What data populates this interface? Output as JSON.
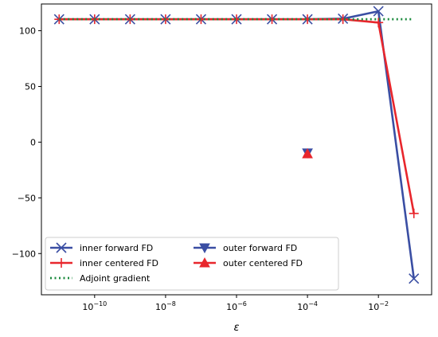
{
  "chart_data": {
    "type": "line",
    "xlabel": "ε",
    "ylabel": "",
    "title": "",
    "xscale": "log",
    "xlim": [
      3.162e-12,
      0.3162
    ],
    "ylim": [
      -137,
      124
    ],
    "grid": false,
    "legend_position": "lower-left",
    "x_tick_labels": [
      {
        "value": 1e-10,
        "base": "10",
        "exp": "−10"
      },
      {
        "value": 1e-08,
        "base": "10",
        "exp": "−8"
      },
      {
        "value": 1e-06,
        "base": "10",
        "exp": "−6"
      },
      {
        "value": 0.0001,
        "base": "10",
        "exp": "−4"
      },
      {
        "value": 0.01,
        "base": "10",
        "exp": "−2"
      }
    ],
    "y_ticks": [
      100,
      50,
      0,
      -50,
      -100
    ],
    "y_tick_labels": [
      "100",
      "50",
      "0",
      "−50",
      "−100"
    ],
    "series": [
      {
        "name": "inner forward FD",
        "color": "#3a4ea3",
        "line": "solid",
        "marker": "x",
        "x": [
          1e-11,
          1e-10,
          1e-09,
          1e-08,
          1e-07,
          1e-06,
          1e-05,
          0.0001,
          0.001,
          0.01,
          0.1
        ],
        "y": [
          110.3,
          110.3,
          110.3,
          110.3,
          110.3,
          110.3,
          110.3,
          110.3,
          110.8,
          117.5,
          -122.5
        ]
      },
      {
        "name": "inner centered FD",
        "color": "#e8262c",
        "line": "solid",
        "marker": "+",
        "x": [
          1e-11,
          1e-10,
          1e-09,
          1e-08,
          1e-07,
          1e-06,
          1e-05,
          0.0001,
          0.001,
          0.01,
          0.1
        ],
        "y": [
          110.3,
          110.3,
          110.3,
          110.3,
          110.3,
          110.3,
          110.3,
          110.3,
          110.3,
          107.3,
          -64
        ]
      },
      {
        "name": "Adjoint gradient",
        "color": "#1a8a3c",
        "line": "dotted",
        "marker": "none",
        "x": [
          1e-11,
          0.1
        ],
        "y": [
          110.3,
          110.3
        ]
      },
      {
        "name": "outer forward FD",
        "color": "#3a4ea3",
        "line": "solid",
        "marker": "triangle-down",
        "x": [
          0.0001
        ],
        "y": [
          -9.6
        ]
      },
      {
        "name": "outer centered FD",
        "color": "#e8262c",
        "line": "solid",
        "marker": "triangle-up",
        "x": [
          0.0001
        ],
        "y": [
          -10.5
        ]
      }
    ],
    "legend": {
      "columns": [
        [
          "inner forward FD",
          "inner centered FD",
          "Adjoint gradient"
        ],
        [
          "outer forward FD",
          "outer centered FD"
        ]
      ]
    }
  }
}
